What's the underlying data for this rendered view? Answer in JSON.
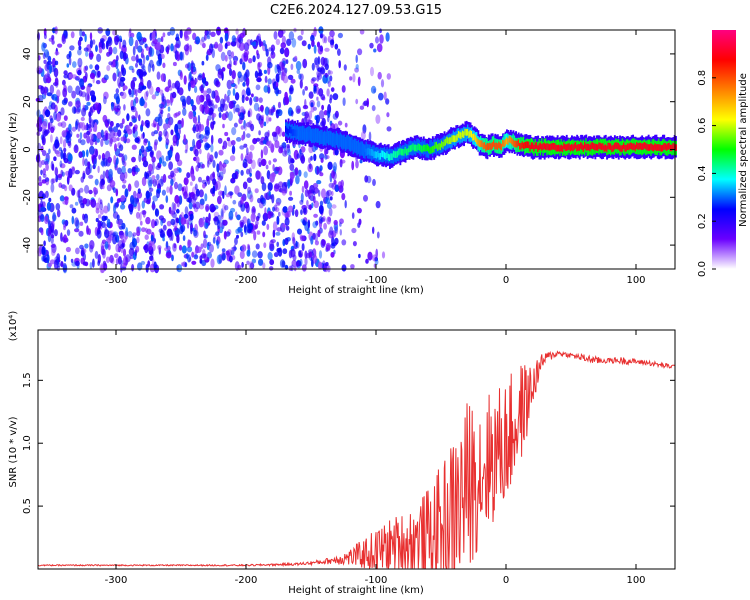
{
  "title": "C2E6.2024.127.09.53.G15",
  "colors": {
    "snr_line": "#e83030",
    "frame": "#000000"
  },
  "chart_data": [
    {
      "type": "heatmap",
      "xlabel": "Height of straight line (km)",
      "ylabel": "Frequency (Hz)",
      "xlim": [
        -360,
        130
      ],
      "ylim": [
        -50,
        50
      ],
      "x_ticks": [
        -300,
        -200,
        -100,
        0,
        100
      ],
      "y_ticks": [
        -40,
        -20,
        0,
        20,
        40
      ],
      "colorbar": {
        "label": "Normalized spectral amplitude",
        "range": [
          0,
          1
        ],
        "ticks": [
          "0.0",
          "0.2",
          "0.4",
          "0.6",
          "0.8"
        ],
        "tick_values": [
          0,
          0.2,
          0.4,
          0.6,
          0.8
        ],
        "colormap": [
          "#ffffff",
          "#6a00ff",
          "#0000ff",
          "#00ffff",
          "#00ff00",
          "#ffff00",
          "#ff8000",
          "#ff0000",
          "#ff0080"
        ]
      },
      "noise_region_x": [
        -360,
        -130
      ],
      "signal_track": {
        "x": [
          -170,
          -160,
          -150,
          -140,
          -130,
          -120,
          -110,
          -100,
          -90,
          -80,
          -70,
          -60,
          -50,
          -40,
          -30,
          -25,
          -20,
          -15,
          -10,
          -5,
          0,
          10,
          20,
          40,
          60,
          80,
          100,
          130
        ],
        "freq": [
          8,
          7,
          6,
          5,
          4,
          2,
          0,
          -2,
          -3,
          -1,
          1,
          0,
          2,
          5,
          7,
          5,
          2,
          1,
          2,
          1,
          4,
          2,
          1,
          1,
          1,
          1,
          1,
          1
        ],
        "amp": [
          0.25,
          0.3,
          0.3,
          0.3,
          0.3,
          0.3,
          0.3,
          0.35,
          0.4,
          0.45,
          0.45,
          0.5,
          0.55,
          0.6,
          0.6,
          0.65,
          0.75,
          0.8,
          0.8,
          0.8,
          0.7,
          0.85,
          0.9,
          0.9,
          0.9,
          0.9,
          0.9,
          0.9
        ]
      }
    },
    {
      "type": "line",
      "xlabel": "Height of straight line (km)",
      "ylabel": "SNR (10 * v/v)",
      "exponent_label": "(x10⁴)",
      "xlim": [
        -360,
        130
      ],
      "ylim": [
        0,
        1.9
      ],
      "x_ticks": [
        -300,
        -200,
        -100,
        0,
        100
      ],
      "y_ticks": [
        0.5,
        1.0,
        1.5
      ],
      "y_tick_labels": [
        "0.5",
        "1.0",
        "1.5"
      ],
      "series": [
        {
          "color": "#e83030",
          "x": [
            -360,
            -300,
            -250,
            -200,
            -160,
            -140,
            -130,
            -120,
            -110,
            -100,
            -90,
            -80,
            -70,
            -60,
            -50,
            -40,
            -30,
            -20,
            -10,
            0,
            10,
            20,
            25,
            30,
            40,
            50,
            60,
            70,
            80,
            90,
            100,
            110,
            120,
            130
          ],
          "y": [
            0.03,
            0.03,
            0.03,
            0.03,
            0.04,
            0.06,
            0.08,
            0.1,
            0.13,
            0.16,
            0.2,
            0.23,
            0.25,
            0.3,
            0.38,
            0.5,
            0.72,
            0.85,
            0.95,
            1.05,
            1.25,
            1.45,
            1.6,
            1.68,
            1.72,
            1.7,
            1.68,
            1.66,
            1.66,
            1.66,
            1.65,
            1.64,
            1.62,
            1.61
          ],
          "spread": [
            0.005,
            0.005,
            0.005,
            0.006,
            0.01,
            0.02,
            0.04,
            0.07,
            0.12,
            0.18,
            0.22,
            0.25,
            0.3,
            0.38,
            0.5,
            0.65,
            0.7,
            0.6,
            0.55,
            0.5,
            0.45,
            0.2,
            0.1,
            0.05,
            0.02,
            0.02,
            0.03,
            0.03,
            0.02,
            0.03,
            0.02,
            0.02,
            0.02,
            0.02
          ]
        }
      ]
    }
  ]
}
